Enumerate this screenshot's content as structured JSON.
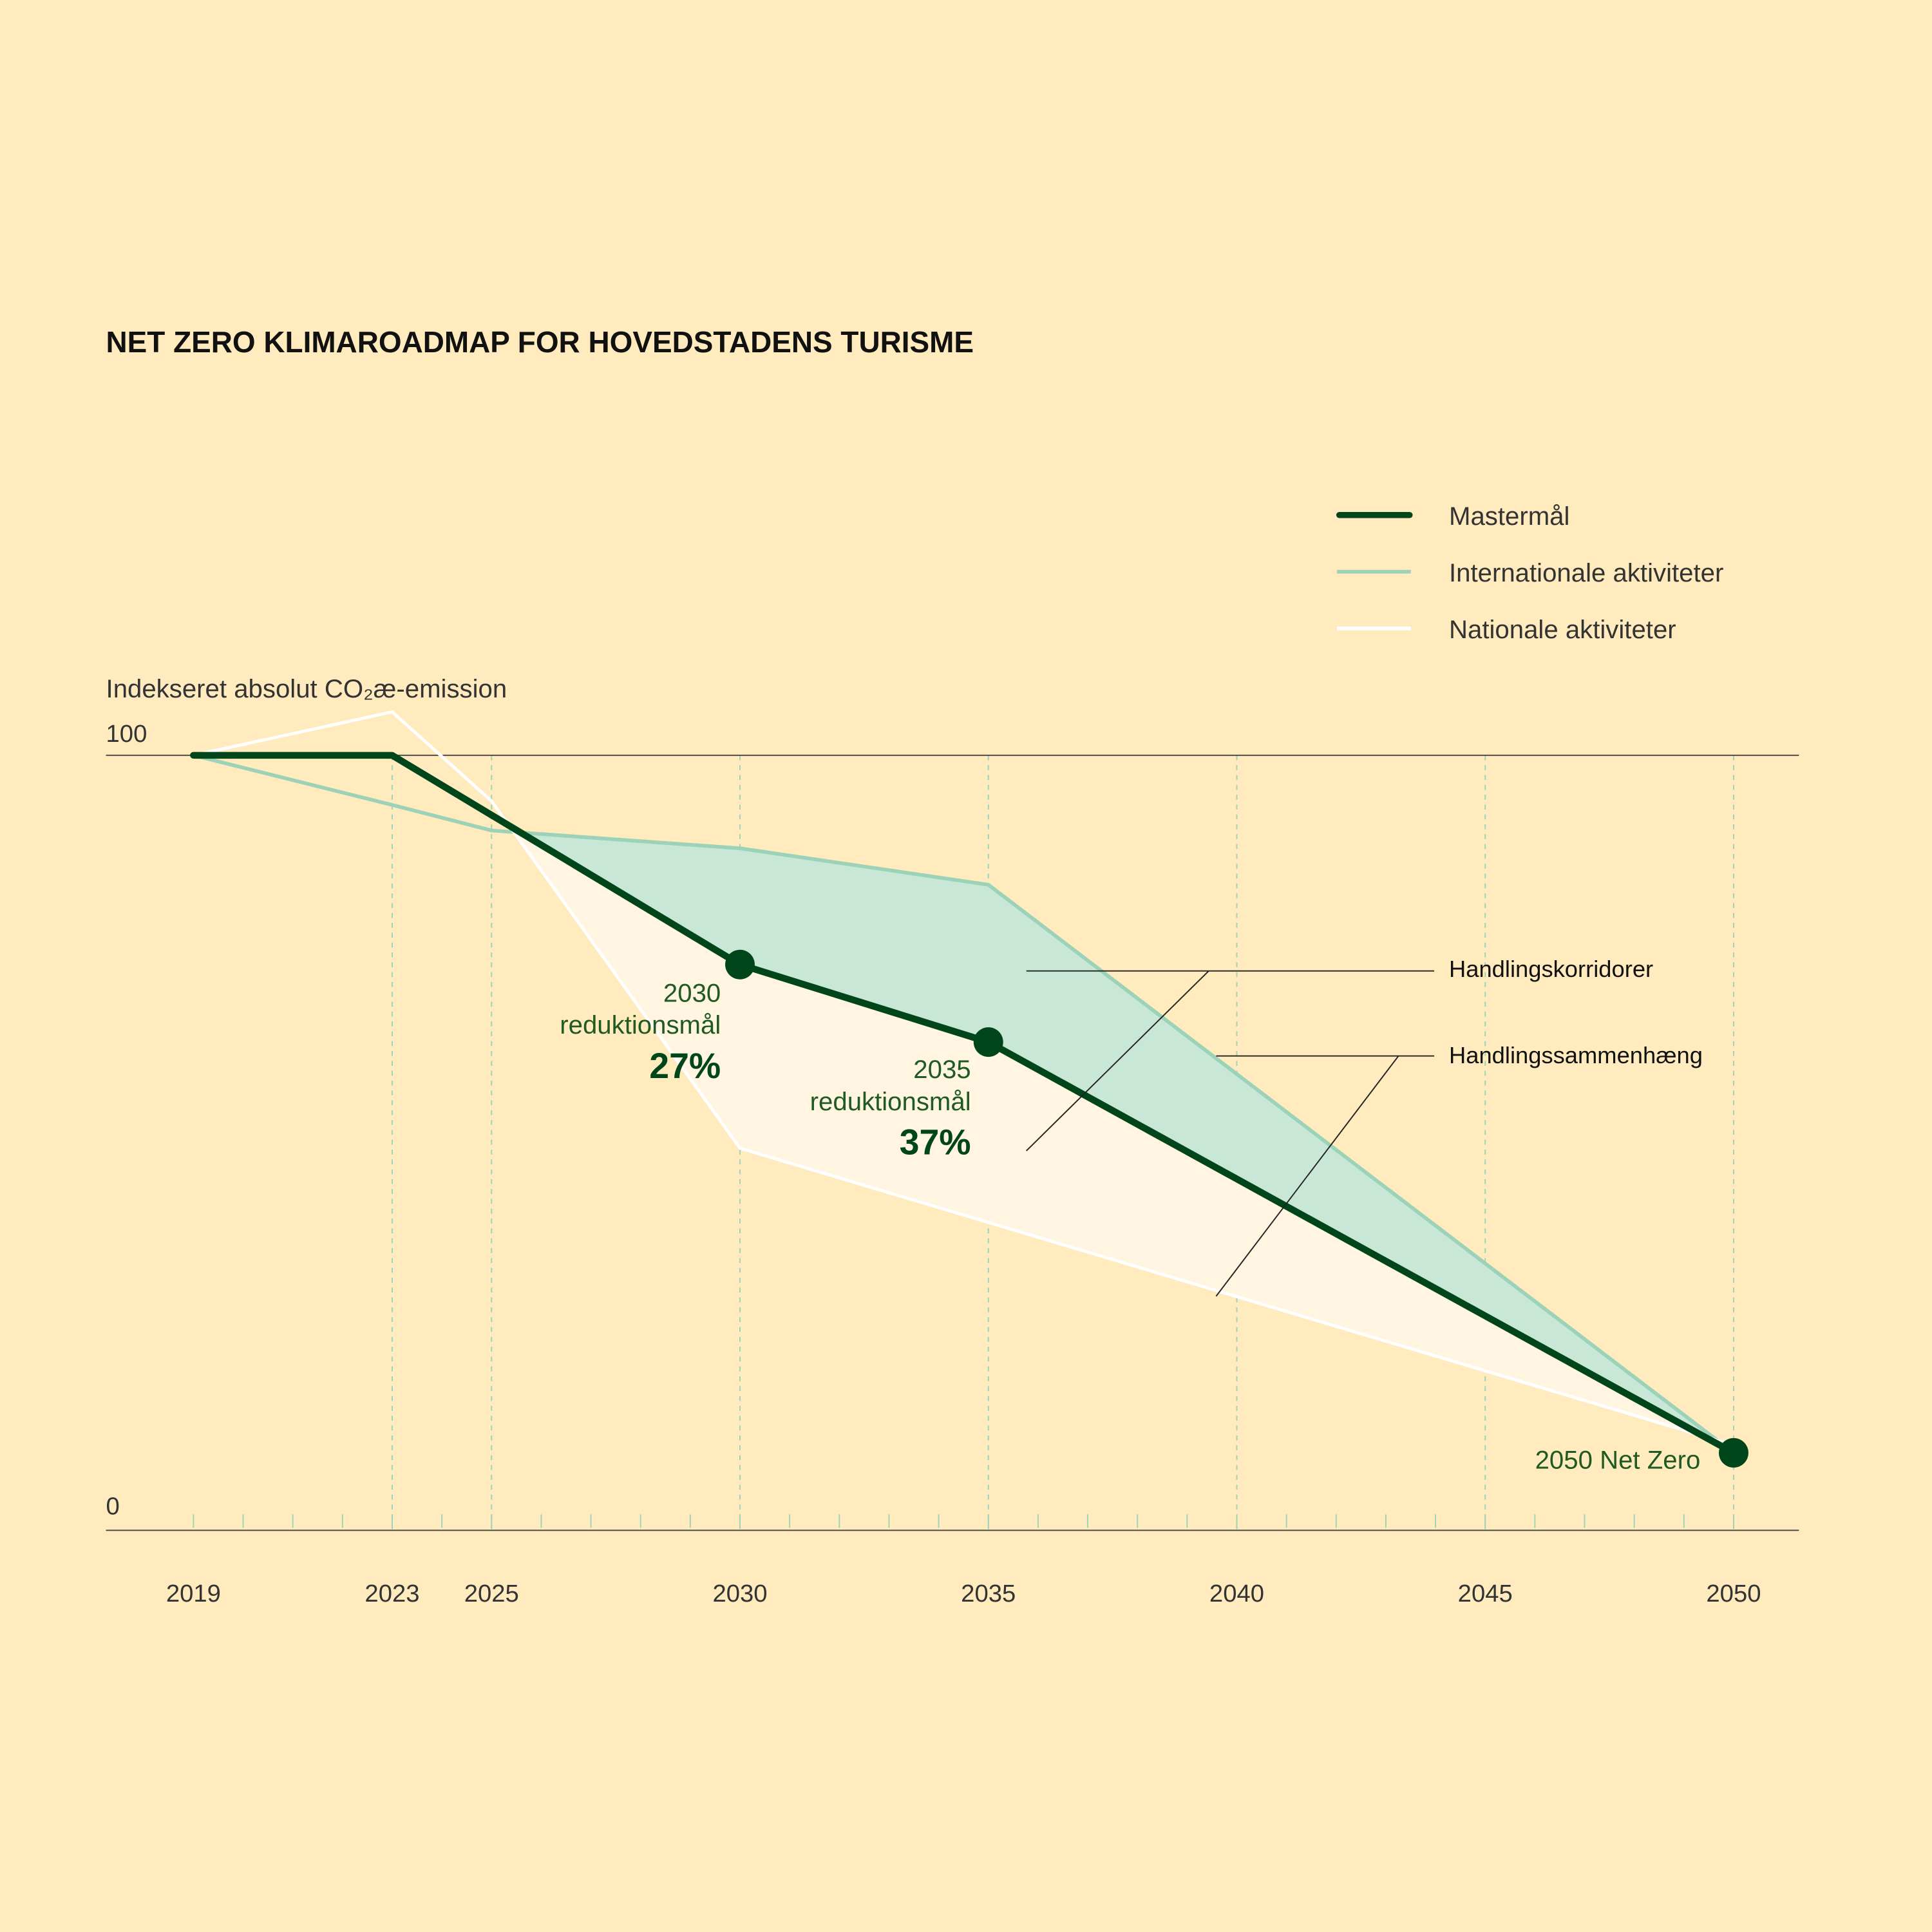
{
  "chart_data": {
    "type": "line",
    "title": "NET ZERO KLIMAROADMAP FOR HOVEDSTADENS TURISME",
    "ylabel": "Indekseret absolut CO₂æ-emission",
    "ylim": [
      0,
      100
    ],
    "y_tick_labels": [
      "100",
      "0"
    ],
    "xlim": [
      2019,
      2050
    ],
    "x_tick_labels": [
      "2019",
      "2023",
      "2025",
      "2030",
      "2035",
      "2040",
      "2045",
      "2050"
    ],
    "grid": "dashed vertical at labelled years",
    "legend_placement": "top-right",
    "series": [
      {
        "name": "Mastermål",
        "color": "#00461A",
        "x": [
          2019,
          2023,
          2030,
          2035,
          2050
        ],
        "y": [
          100,
          100,
          73,
          63,
          10
        ]
      },
      {
        "name": "Internationale aktiviteter",
        "color": "#9CD3B8",
        "x": [
          2019,
          2023,
          2025,
          2030,
          2035,
          2050
        ],
        "y": [
          100,
          93.6,
          90.3,
          88,
          83.3,
          10
        ]
      },
      {
        "name": "Nationale aktiviteter",
        "color": "#FFFFFF",
        "x": [
          2019,
          2023,
          2025,
          2030,
          2050
        ],
        "y": [
          100,
          105.6,
          94.1,
          49.3,
          11
        ]
      }
    ],
    "markers": [
      {
        "x": 2030,
        "y": 73,
        "label_lines": [
          "2030",
          "reduktionsmål"
        ],
        "value": "27%"
      },
      {
        "x": 2035,
        "y": 63,
        "label_lines": [
          "2035",
          "reduktionsmål"
        ],
        "value": "37%"
      },
      {
        "x": 2050,
        "y": 10,
        "label_lines": [
          "2050 Net Zero"
        ],
        "value": ""
      }
    ],
    "annotations": [
      "Handlingskorridorer",
      "Handlingssammenhæng"
    ],
    "colors": {
      "background": "#FFEBBD",
      "corridor_fill": "#C9E7D6",
      "national_fill": "#FFF5E0",
      "axis": "#444444"
    }
  }
}
